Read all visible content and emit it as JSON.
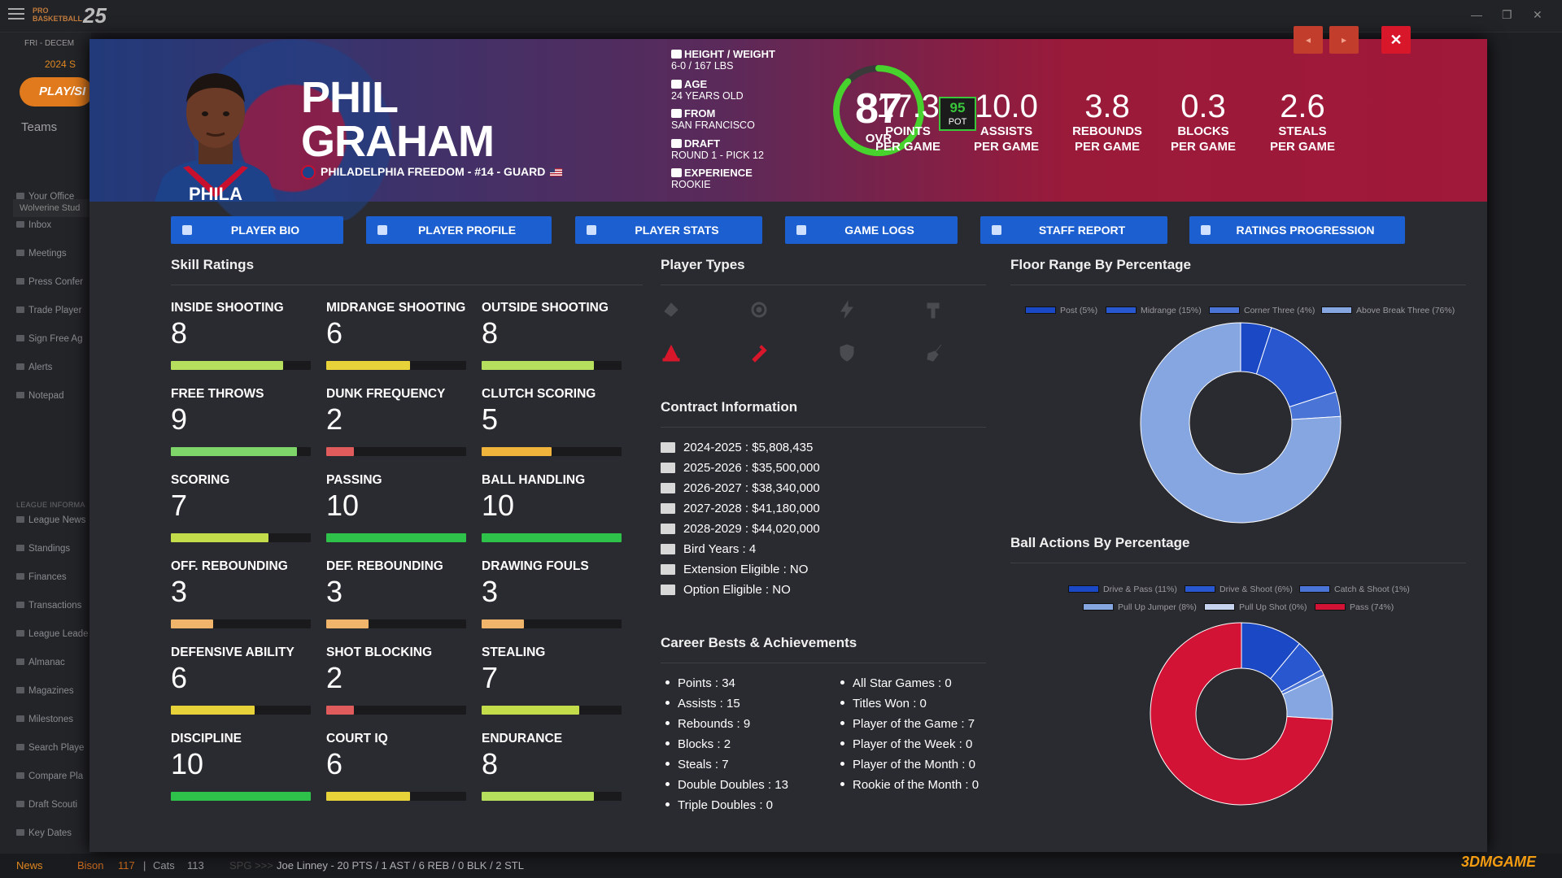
{
  "app": {
    "logo_small": "PRO BASKETBALL",
    "logo_year": "25",
    "controls": [
      "—",
      "❐",
      "✕"
    ]
  },
  "sidebar": {
    "date": "FRI - DECEM",
    "season": "2024 S",
    "play_label": "PLAY/SI",
    "teams_label": "Teams",
    "team_name": "Wolverine Stud",
    "items": [
      {
        "label": "Your Office",
        "top": 0
      },
      {
        "label": "Inbox"
      },
      {
        "label": "Meetings"
      },
      {
        "label": "Press Confer"
      },
      {
        "label": "Trade Player"
      },
      {
        "label": "Sign Free Ag"
      },
      {
        "label": "Alerts"
      },
      {
        "label": "Notepad"
      }
    ],
    "league_header": "LEAGUE INFORMA",
    "league_items": [
      {
        "label": "League News"
      },
      {
        "label": "Standings"
      },
      {
        "label": "Finances"
      },
      {
        "label": "Transactions"
      },
      {
        "label": "League Leade"
      },
      {
        "label": "Almanac"
      },
      {
        "label": "Magazines"
      },
      {
        "label": "Milestones"
      },
      {
        "label": "Search Playe"
      },
      {
        "label": "Compare Pla"
      },
      {
        "label": "Draft Scouti"
      },
      {
        "label": "Key Dates"
      }
    ]
  },
  "ticker": {
    "news": "News",
    "team1": "Bison",
    "score1": "117",
    "team2": "Cats",
    "score2": "113",
    "spg": "SPG >>>",
    "line": "Joe Linney - 20 PTS / 1 AST / 6 REB / 0 BLK / 2 STL"
  },
  "player": {
    "first_name": "PHIL",
    "last_name": "GRAHAM",
    "team_line": "PHILADELPHIA FREEDOM - #14 - GUARD",
    "bio": [
      {
        "label": "HEIGHT / WEIGHT",
        "value": "6-0 / 167 LBS",
        "icon": "ruler-icon"
      },
      {
        "label": "AGE",
        "value": "24 YEARS OLD",
        "icon": "cake-icon"
      },
      {
        "label": "FROM",
        "value": "SAN FRANCISCO",
        "icon": "building-icon"
      },
      {
        "label": "DRAFT",
        "value": "ROUND 1 - PICK 12",
        "icon": "hash-icon"
      },
      {
        "label": "EXPERIENCE",
        "value": "ROOKIE",
        "icon": "users-icon"
      }
    ],
    "ovr": "87",
    "ovr_label": "OVR",
    "ovr_fraction": 0.87,
    "pot": "95",
    "pot_label": "POT",
    "stats": [
      {
        "value": "17.3",
        "l1": "POINTS",
        "l2": "PER GAME"
      },
      {
        "value": "10.0",
        "l1": "ASSISTS",
        "l2": "PER GAME"
      },
      {
        "value": "3.8",
        "l1": "REBOUNDS",
        "l2": "PER GAME"
      },
      {
        "value": "0.3",
        "l1": "BLOCKS",
        "l2": "PER GAME"
      },
      {
        "value": "2.6",
        "l1": "STEALS",
        "l2": "PER GAME"
      }
    ]
  },
  "modal_controls": {
    "prev": "◂",
    "next": "▸",
    "close": "✕"
  },
  "tabs": [
    {
      "label": "PLAYER BIO"
    },
    {
      "label": "PLAYER PROFILE"
    },
    {
      "label": "PLAYER STATS"
    },
    {
      "label": "GAME LOGS"
    },
    {
      "label": "STAFF REPORT"
    },
    {
      "label": "RATINGS PROGRESSION"
    }
  ],
  "skills": {
    "title": "Skill Ratings",
    "items": [
      {
        "name": "INSIDE SHOOTING",
        "value": "8",
        "level": 0.8,
        "color": "#b5df5c"
      },
      {
        "name": "MIDRANGE SHOOTING",
        "value": "6",
        "level": 0.6,
        "color": "#e8d23a"
      },
      {
        "name": "OUTSIDE SHOOTING",
        "value": "8",
        "level": 0.8,
        "color": "#b5df5c"
      },
      {
        "name": "FREE THROWS",
        "value": "9",
        "level": 0.9,
        "color": "#7ed66a"
      },
      {
        "name": "DUNK FREQUENCY",
        "value": "2",
        "level": 0.2,
        "color": "#e05c5c"
      },
      {
        "name": "CLUTCH SCORING",
        "value": "5",
        "level": 0.5,
        "color": "#f0b43c"
      },
      {
        "name": "SCORING",
        "value": "7",
        "level": 0.7,
        "color": "#c3dc4a"
      },
      {
        "name": "PASSING",
        "value": "10",
        "level": 1.0,
        "color": "#2fc24a"
      },
      {
        "name": "BALL HANDLING",
        "value": "10",
        "level": 1.0,
        "color": "#2fc24a"
      },
      {
        "name": "OFF. REBOUNDING",
        "value": "3",
        "level": 0.3,
        "color": "#f0b46a"
      },
      {
        "name": "DEF. REBOUNDING",
        "value": "3",
        "level": 0.3,
        "color": "#f0b46a"
      },
      {
        "name": "DRAWING FOULS",
        "value": "3",
        "level": 0.3,
        "color": "#f0b46a"
      },
      {
        "name": "DEFENSIVE ABILITY",
        "value": "6",
        "level": 0.6,
        "color": "#e8d23a"
      },
      {
        "name": "SHOT BLOCKING",
        "value": "2",
        "level": 0.2,
        "color": "#e05c5c"
      },
      {
        "name": "STEALING",
        "value": "7",
        "level": 0.7,
        "color": "#c3dc4a"
      },
      {
        "name": "DISCIPLINE",
        "value": "10",
        "level": 1.0,
        "color": "#2fc24a"
      },
      {
        "name": "COURT IQ",
        "value": "6",
        "level": 0.6,
        "color": "#e8d23a"
      },
      {
        "name": "ENDURANCE",
        "value": "8",
        "level": 0.8,
        "color": "#b5df5c"
      }
    ]
  },
  "player_types": {
    "title": "Player Types",
    "icons": [
      {
        "name": "paint-icon",
        "active": false
      },
      {
        "name": "target-icon",
        "active": false
      },
      {
        "name": "lightning-icon",
        "active": false
      },
      {
        "name": "hammer-icon",
        "active": false
      },
      {
        "name": "cone-icon",
        "active": true
      },
      {
        "name": "syringe-icon",
        "active": true
      },
      {
        "name": "shield-icon",
        "active": false
      },
      {
        "name": "broom-icon",
        "active": false
      }
    ],
    "active_color": "#d8172b",
    "inactive_color": "#4a4b50"
  },
  "contract": {
    "title": "Contract Information",
    "rows": [
      {
        "label": "2024-2025",
        "value": "$5,808,435",
        "icon": "money-icon"
      },
      {
        "label": "2025-2026",
        "value": "$35,500,000",
        "icon": "money-icon"
      },
      {
        "label": "2026-2027",
        "value": "$38,340,000",
        "icon": "money-icon"
      },
      {
        "label": "2027-2028",
        "value": "$41,180,000",
        "icon": "money-icon"
      },
      {
        "label": "2028-2029",
        "value": "$44,020,000",
        "icon": "money-icon"
      },
      {
        "label": "Bird Years",
        "value": "4",
        "icon": "feather-icon"
      },
      {
        "label": "Extension Eligible",
        "value": "NO",
        "icon": "external-link-icon"
      },
      {
        "label": "Option Eligible",
        "value": "NO",
        "icon": "thumbs-up-icon"
      }
    ]
  },
  "career": {
    "title": "Career Bests & Achievements",
    "left": [
      {
        "label": "Points",
        "value": "34"
      },
      {
        "label": "Assists",
        "value": "15"
      },
      {
        "label": "Rebounds",
        "value": "9"
      },
      {
        "label": "Blocks",
        "value": "2"
      },
      {
        "label": "Steals",
        "value": "7"
      },
      {
        "label": "Double Doubles",
        "value": "13"
      },
      {
        "label": "Triple Doubles",
        "value": "0"
      }
    ],
    "right": [
      {
        "label": "All Star Games",
        "value": "0"
      },
      {
        "label": "Titles Won",
        "value": "0"
      },
      {
        "label": "Player of the Game",
        "value": "7"
      },
      {
        "label": "Player of the Week",
        "value": "0"
      },
      {
        "label": "Player of the Month",
        "value": "0"
      },
      {
        "label": "Rookie of the Month",
        "value": "0"
      }
    ]
  },
  "chart_data": [
    {
      "type": "pie",
      "title": "Floor Range By Percentage",
      "legend_placement": "top",
      "series": [
        {
          "name": "Post (5%)",
          "value": 5,
          "color": "#1b48c4"
        },
        {
          "name": "Midrange (15%)",
          "value": 15,
          "color": "#2957cf"
        },
        {
          "name": "Corner Three (4%)",
          "value": 4,
          "color": "#4a74d6"
        },
        {
          "name": "Above Break Three (76%)",
          "value": 76,
          "color": "#86a6e2"
        }
      ]
    },
    {
      "type": "pie",
      "title": "Ball Actions By Percentage",
      "legend_placement": "top",
      "series": [
        {
          "name": "Drive & Pass (11%)",
          "value": 11,
          "color": "#1b48c4"
        },
        {
          "name": "Drive & Shoot (6%)",
          "value": 6,
          "color": "#2957cf"
        },
        {
          "name": "Catch & Shoot (1%)",
          "value": 1,
          "color": "#4a74d6"
        },
        {
          "name": "Pull Up Jumper (8%)",
          "value": 8,
          "color": "#86a6e2"
        },
        {
          "name": "Pull Up Shot (0%)",
          "value": 0,
          "color": "#c5d3ee"
        },
        {
          "name": "Pass (74%)",
          "value": 74,
          "color": "#d31335"
        }
      ]
    }
  ],
  "watermark": "3DMGAME"
}
